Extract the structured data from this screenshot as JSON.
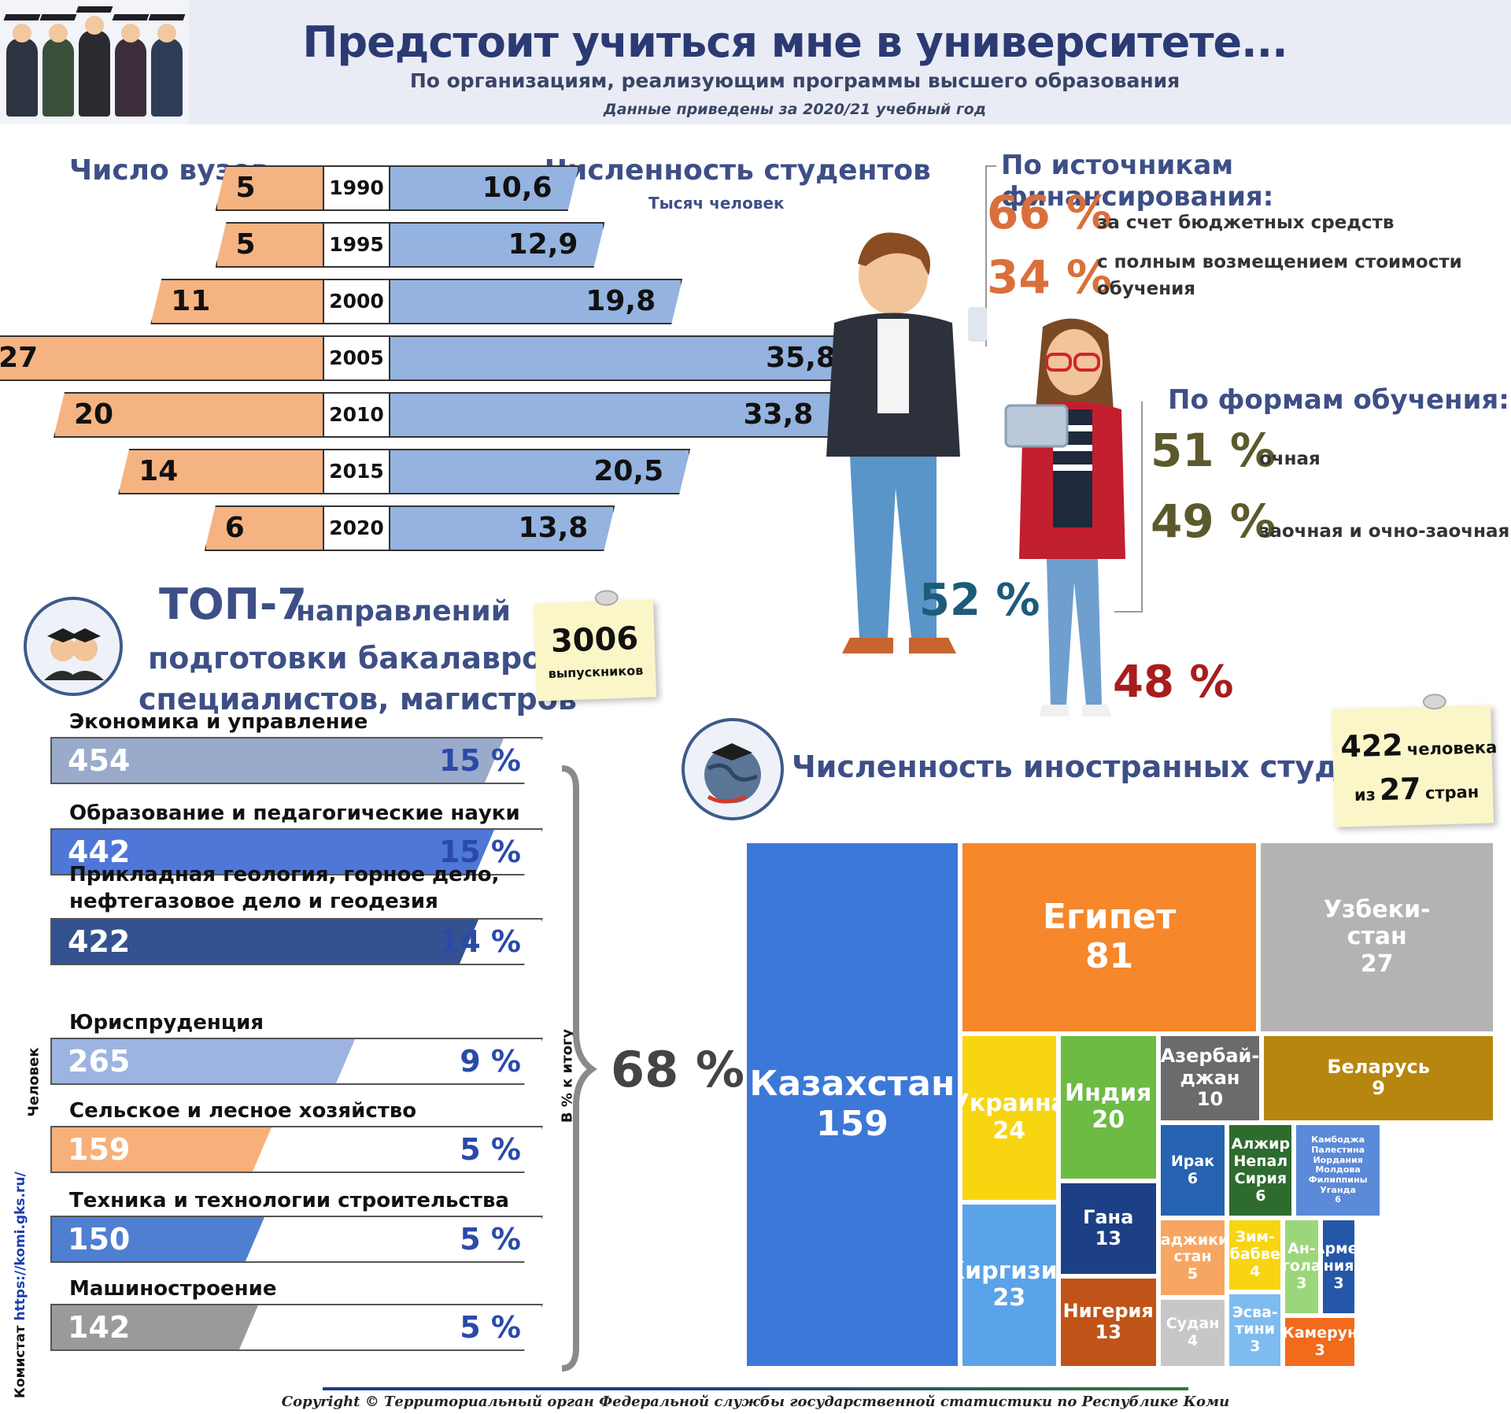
{
  "header": {
    "title": "Предстоит учиться мне в университете...",
    "subtitle": "По организациям, реализующим программы высшего образования",
    "note": "Данные приведены за 2020/21 учебный год"
  },
  "years_chart": {
    "left_title": "Число вузов",
    "right_title": "Численность студентов",
    "right_unit": "Тысяч человек",
    "rows": [
      {
        "year": "1990",
        "universities": "5",
        "students": "10,6"
      },
      {
        "year": "1995",
        "universities": "5",
        "students": "12,9"
      },
      {
        "year": "2000",
        "universities": "11",
        "students": "19,8"
      },
      {
        "year": "2005",
        "universities": "27",
        "students": "35,8"
      },
      {
        "year": "2010",
        "universities": "20",
        "students": "33,8"
      },
      {
        "year": "2015",
        "universities": "14",
        "students": "20,5"
      },
      {
        "year": "2020",
        "universities": "6",
        "students": "13,8"
      }
    ]
  },
  "financing": {
    "title": "По источникам финансирования:",
    "budget_pct": "66 %",
    "budget_label": "за счет бюджетных средств",
    "paid_pct": "34 %",
    "paid_label_1": "с полным возмещением стоимости",
    "paid_label_2": "обучения"
  },
  "study_forms": {
    "title": "По формам обучения:",
    "fulltime_pct": "51 %",
    "fulltime_label": "очная",
    "parttime_pct": "49 %",
    "parttime_label": "заочная и очно-заочная"
  },
  "gender": {
    "male_pct": "52 %",
    "female_pct": "48 %"
  },
  "top7": {
    "title_big": "ТОП-7",
    "title_rest": "направлений",
    "title_line2": "подготовки бакалавров,",
    "title_line3": "специалистов, магистров",
    "graduates_value": "3006",
    "graduates_label": "выпускников",
    "axis_people": "Человек",
    "axis_percent": "В % к итогу",
    "total_pct": "68 %",
    "source": "Комистат",
    "source_link": "https://komi.gks.ru/",
    "items": [
      {
        "label": "Экономика и управление",
        "label2": "",
        "value": "454",
        "pct": "15 %",
        "color": "#9aaacb"
      },
      {
        "label": "Образование и педагогические науки",
        "label2": "",
        "value": "442",
        "pct": "15 %",
        "color": "#4f77d8"
      },
      {
        "label": "Прикладная геология, горное дело,",
        "label2": "нефтегазовое дело и геодезия",
        "value": "422",
        "pct": "14 %",
        "color": "#34528f"
      },
      {
        "label": "Юриспруденция",
        "label2": "",
        "value": "265",
        "pct": "9 %",
        "color": "#9db4e0"
      },
      {
        "label": "Сельское и лесное хозяйство",
        "label2": "",
        "value": "159",
        "pct": "5 %",
        "color": "#f7b07a"
      },
      {
        "label": "Техника и технологии строительства",
        "label2": "",
        "value": "150",
        "pct": "5 %",
        "color": "#4f7fd0"
      },
      {
        "label": "Машиностроение",
        "label2": "",
        "value": "142",
        "pct": "5 %",
        "color": "#9a9a9a"
      }
    ]
  },
  "foreign": {
    "title": "Численность иностранных студентов",
    "people": "422",
    "people_label": "человека",
    "from_label": "из",
    "countries": "27",
    "countries_label": "стран"
  },
  "chart_data": [
    {
      "type": "bar",
      "categories": [
        "1990",
        "1995",
        "2000",
        "2005",
        "2010",
        "2015",
        "2020"
      ],
      "series": [
        {
          "name": "Число вузов",
          "values": [
            5,
            5,
            11,
            27,
            20,
            14,
            6
          ]
        },
        {
          "name": "Численность студентов",
          "values": [
            10.6,
            12.9,
            19.8,
            35.8,
            33.8,
            20.5,
            13.8
          ]
        }
      ]
    },
    {
      "type": "bar",
      "categories": [
        "Экономика и управление",
        "Образование и педагогические науки",
        "Прикладная геология, горное дело, нефтегазовое дело и геодезия",
        "Юриспруденция",
        "Сельское и лесное хозяйство",
        "Техника и технологии строительства",
        "Машиностроение"
      ],
      "values": [
        454,
        442,
        422,
        265,
        159,
        150,
        142
      ],
      "percent": [
        15,
        15,
        14,
        9,
        5,
        5,
        5
      ],
      "ylabel": "Человек"
    },
    {
      "type": "heatmap",
      "title": "Численность иностранных студентов",
      "cells": [
        {
          "name": "Казахстан",
          "value": 159,
          "color": "#3c78d8"
        },
        {
          "name": "Египет",
          "value": 81,
          "color": "#f6872b"
        },
        {
          "name": "Узбекистан",
          "label": "Узбеки-|стан",
          "value": 27,
          "color": "#b3b3b3"
        },
        {
          "name": "Украина",
          "value": 24,
          "color": "#f7d511"
        },
        {
          "name": "Индия",
          "value": 20,
          "color": "#6cbb43"
        },
        {
          "name": "Азербайджан",
          "label": "Азербай-|джан",
          "value": 10,
          "color": "#6b6b6b"
        },
        {
          "name": "Беларусь",
          "value": 9,
          "color": "#b7860f"
        },
        {
          "name": "Киргизия",
          "value": 23,
          "color": "#5aa3e8"
        },
        {
          "name": "Гана",
          "value": 13,
          "color": "#1c3f86"
        },
        {
          "name": "Нигерия",
          "value": 13,
          "color": "#c05418"
        },
        {
          "name": "Ирак",
          "value": 6,
          "color": "#2663b0"
        },
        {
          "name": "Алжир Непал Сирия",
          "label": "Алжир|Непал|Сирия",
          "value": 6,
          "color": "#2e6b2e"
        },
        {
          "name": "Камбоджа Палестина Иордания Молдова Филиппины Уганда",
          "label": "Камбоджа|Палестина|Иордания|Молдова|Филиппины|Уганда",
          "value": 6,
          "color": "#5a8ad8"
        },
        {
          "name": "Таджикистан",
          "label": "Таджики-|стан",
          "value": 5,
          "color": "#f7a662"
        },
        {
          "name": "Зимбабве",
          "label": "Зим-|бабве",
          "value": 4,
          "color": "#f7d511"
        },
        {
          "name": "Ангола",
          "label": "Ан-|гола",
          "value": 3,
          "color": "#9bd77a"
        },
        {
          "name": "Армения",
          "label": "Арме-|ния",
          "value": 3,
          "color": "#2557a8"
        },
        {
          "name": "Судан",
          "value": 4,
          "color": "#c7c7c7"
        },
        {
          "name": "Эсватини",
          "label": "Эсва-|тини",
          "value": 3,
          "color": "#7ebcef"
        },
        {
          "name": "Камерун",
          "value": 3,
          "color": "#f26a1b"
        }
      ]
    }
  ],
  "footer": {
    "copyright": "Copyright © Территориальный орган Федеральной службы государственной статистики по Республике Коми"
  }
}
